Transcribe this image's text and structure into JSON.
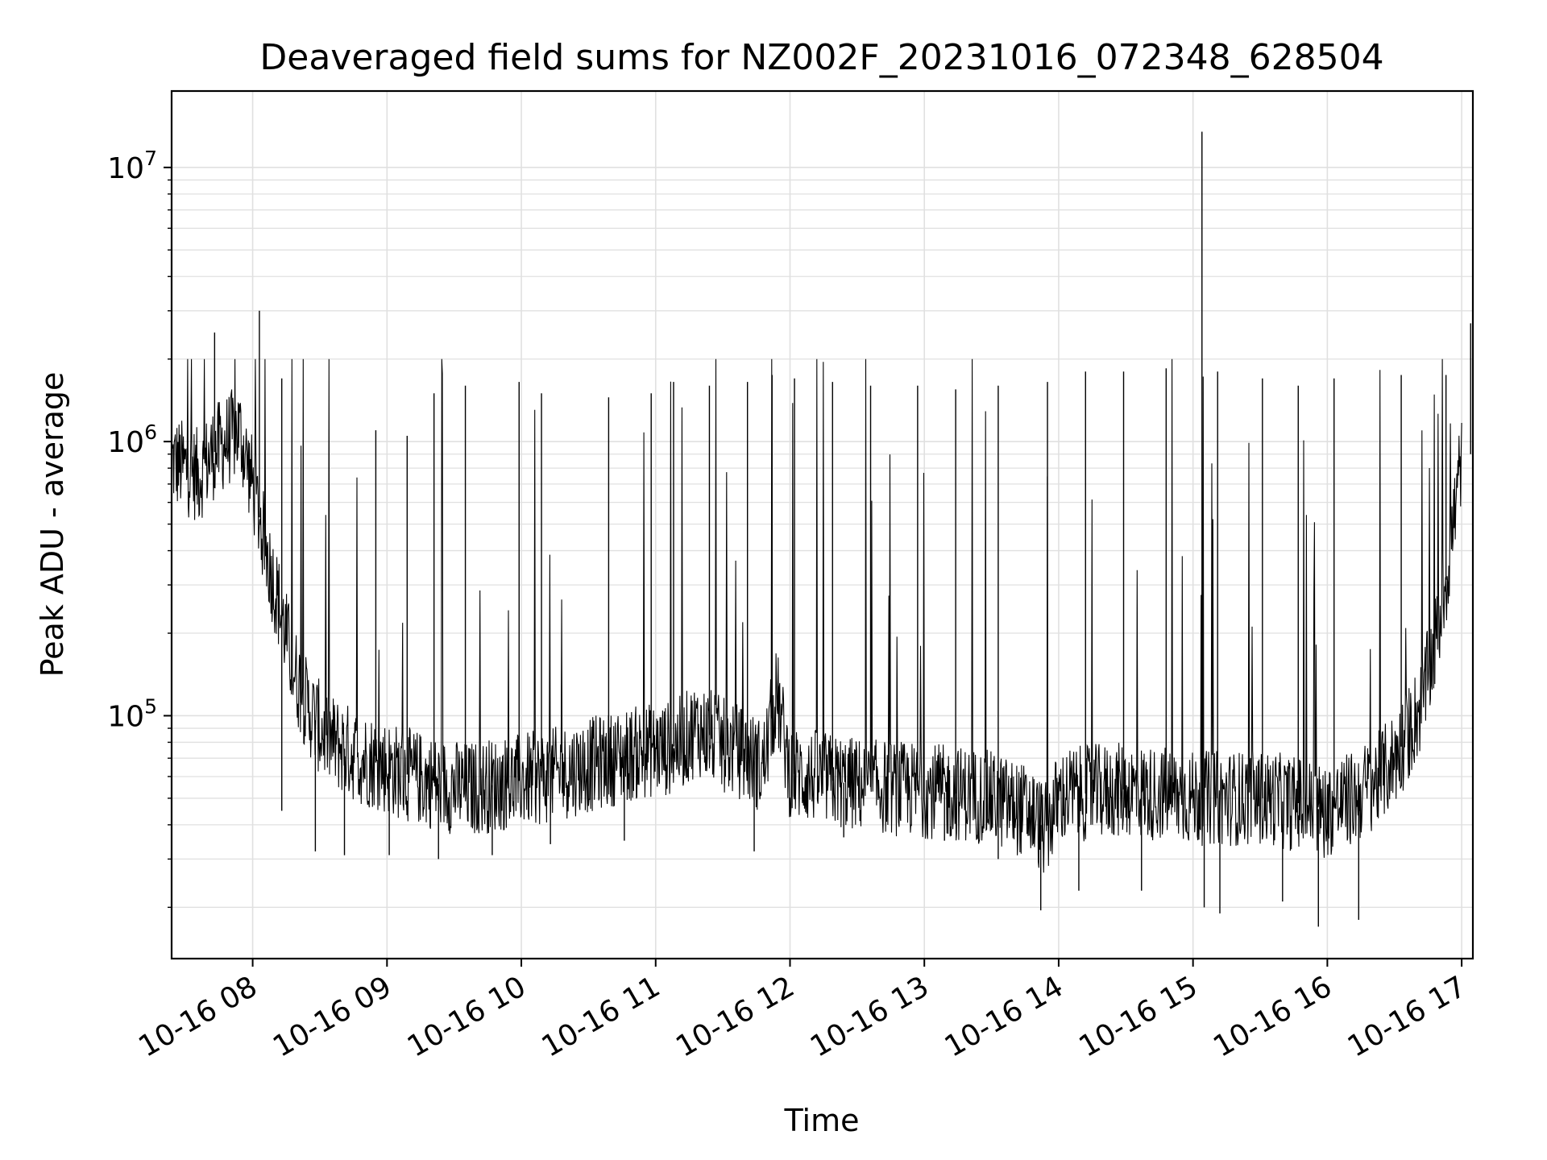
{
  "chart_data": {
    "type": "line",
    "title": "Deaveraged field sums for NZ002F_20231016_072348_628504",
    "xlabel": "Time",
    "ylabel": "Peak ADU - average",
    "yscale": "log",
    "ylim": [
      13000,
      19000000
    ],
    "xlim": [
      "2023-10-16 07:23:48",
      "2023-10-16 17:05:00"
    ],
    "x_ticks": [
      "2023-10-16 08:00",
      "2023-10-16 09:00",
      "2023-10-16 10:00",
      "2023-10-16 11:00",
      "2023-10-16 12:00",
      "2023-10-16 13:00",
      "2023-10-16 14:00",
      "2023-10-16 15:00",
      "2023-10-16 16:00",
      "2023-10-16 17:00"
    ],
    "x_tick_labels": [
      "10-16 08",
      "10-16 09",
      "10-16 10",
      "10-16 11",
      "10-16 12",
      "10-16 13",
      "10-16 14",
      "10-16 15",
      "10-16 16",
      "10-16 17"
    ],
    "y_ticks": [
      100000,
      1000000,
      10000000
    ],
    "y_tick_labels": [
      {
        "base": "10",
        "exp": "5"
      },
      {
        "base": "10",
        "exp": "6"
      },
      {
        "base": "10",
        "exp": "7"
      }
    ],
    "grid": true,
    "line_color": "#000000",
    "series": [
      {
        "x": [
          "2023-10-16 07:24",
          "2023-10-16 07:30",
          "2023-10-16 07:36",
          "2023-10-16 07:42",
          "2023-10-16 07:48",
          "2023-10-16 07:54",
          "2023-10-16 08:00",
          "2023-10-16 08:06",
          "2023-10-16 08:12",
          "2023-10-16 08:18",
          "2023-10-16 08:24",
          "2023-10-16 08:30",
          "2023-10-16 08:36",
          "2023-10-16 08:42",
          "2023-10-16 08:48",
          "2023-10-16 08:54",
          "2023-10-16 09:00",
          "2023-10-16 09:06",
          "2023-10-16 09:12",
          "2023-10-16 09:18",
          "2023-10-16 09:24",
          "2023-10-16 09:30",
          "2023-10-16 09:36",
          "2023-10-16 09:42",
          "2023-10-16 09:48",
          "2023-10-16 09:54",
          "2023-10-16 10:00",
          "2023-10-16 10:06",
          "2023-10-16 10:12",
          "2023-10-16 10:18",
          "2023-10-16 10:24",
          "2023-10-16 10:30",
          "2023-10-16 10:36",
          "2023-10-16 10:42",
          "2023-10-16 10:48",
          "2023-10-16 10:54",
          "2023-10-16 11:00",
          "2023-10-16 11:06",
          "2023-10-16 11:12",
          "2023-10-16 11:18",
          "2023-10-16 11:24",
          "2023-10-16 11:30",
          "2023-10-16 11:36",
          "2023-10-16 11:42",
          "2023-10-16 11:48",
          "2023-10-16 11:54",
          "2023-10-16 12:00",
          "2023-10-16 12:06",
          "2023-10-16 12:12",
          "2023-10-16 12:18",
          "2023-10-16 12:24",
          "2023-10-16 12:30",
          "2023-10-16 12:36",
          "2023-10-16 12:42",
          "2023-10-16 12:48",
          "2023-10-16 12:54",
          "2023-10-16 13:00",
          "2023-10-16 13:06",
          "2023-10-16 13:12",
          "2023-10-16 13:18",
          "2023-10-16 13:24",
          "2023-10-16 13:30",
          "2023-10-16 13:36",
          "2023-10-16 13:42",
          "2023-10-16 13:48",
          "2023-10-16 13:54",
          "2023-10-16 14:00",
          "2023-10-16 14:06",
          "2023-10-16 14:12",
          "2023-10-16 14:18",
          "2023-10-16 14:24",
          "2023-10-16 14:30",
          "2023-10-16 14:36",
          "2023-10-16 14:42",
          "2023-10-16 14:48",
          "2023-10-16 14:54",
          "2023-10-16 15:00",
          "2023-10-16 15:06",
          "2023-10-16 15:12",
          "2023-10-16 15:18",
          "2023-10-16 15:24",
          "2023-10-16 15:30",
          "2023-10-16 15:36",
          "2023-10-16 15:42",
          "2023-10-16 15:48",
          "2023-10-16 15:54",
          "2023-10-16 16:00",
          "2023-10-16 16:06",
          "2023-10-16 16:12",
          "2023-10-16 16:18",
          "2023-10-16 16:24",
          "2023-10-16 16:30",
          "2023-10-16 16:36",
          "2023-10-16 16:42",
          "2023-10-16 16:48",
          "2023-10-16 16:54",
          "2023-10-16 17:00"
        ],
        "y": [
          850000,
          800000,
          750000,
          900000,
          1000000,
          1100000,
          700000,
          400000,
          250000,
          150000,
          110000,
          90000,
          80000,
          75000,
          70000,
          68000,
          65000,
          62000,
          60000,
          58000,
          56000,
          55000,
          54000,
          55000,
          56000,
          57000,
          58000,
          59000,
          60000,
          62000,
          64000,
          66000,
          68000,
          70000,
          72000,
          74000,
          75000,
          76000,
          80000,
          90000,
          85000,
          78000,
          75000,
          70000,
          65000,
          120000,
          62000,
          60000,
          60000,
          58000,
          57000,
          56000,
          55000,
          55000,
          54000,
          54000,
          53000,
          53000,
          52000,
          52000,
          51000,
          50000,
          48000,
          46000,
          44000,
          38000,
          50000,
          52000,
          52000,
          53000,
          53000,
          54000,
          53000,
          52000,
          52000,
          51000,
          50000,
          50000,
          50000,
          50000,
          50000,
          50000,
          50000,
          48000,
          48000,
          46000,
          45000,
          48000,
          50000,
          55000,
          60000,
          70000,
          85000,
          110000,
          180000,
          350000,
          900000
        ],
        "spikes": [
          {
            "x": "2023-10-16 07:43",
            "y": 2500000
          },
          {
            "x": "2023-10-16 08:03",
            "y": 3000000
          },
          {
            "x": "2023-10-16 08:13",
            "y": 1700000
          },
          {
            "x": "2023-10-16 08:55",
            "y": 1100000
          },
          {
            "x": "2023-10-16 09:09",
            "y": 1050000
          },
          {
            "x": "2023-10-16 09:21",
            "y": 1500000
          },
          {
            "x": "2023-10-16 09:35",
            "y": 1600000
          },
          {
            "x": "2023-10-16 09:59",
            "y": 1650000
          },
          {
            "x": "2023-10-16 10:09",
            "y": 1500000
          },
          {
            "x": "2023-10-16 10:39",
            "y": 1450000
          },
          {
            "x": "2023-10-16 10:58",
            "y": 1500000
          },
          {
            "x": "2023-10-16 11:08",
            "y": 1650000
          },
          {
            "x": "2023-10-16 11:24",
            "y": 1600000
          },
          {
            "x": "2023-10-16 11:41",
            "y": 1650000
          },
          {
            "x": "2023-10-16 11:52",
            "y": 1750000
          },
          {
            "x": "2023-10-16 12:02",
            "y": 1700000
          },
          {
            "x": "2023-10-16 12:19",
            "y": 1650000
          },
          {
            "x": "2023-10-16 12:36",
            "y": 1600000
          },
          {
            "x": "2023-10-16 12:57",
            "y": 1600000
          },
          {
            "x": "2023-10-16 13:14",
            "y": 1550000
          },
          {
            "x": "2023-10-16 13:33",
            "y": 1600000
          },
          {
            "x": "2023-10-16 13:55",
            "y": 1650000
          },
          {
            "x": "2023-10-16 14:12",
            "y": 1800000
          },
          {
            "x": "2023-10-16 14:29",
            "y": 1800000
          },
          {
            "x": "2023-10-16 14:48",
            "y": 1850000
          },
          {
            "x": "2023-10-16 15:04",
            "y": 13500000
          },
          {
            "x": "2023-10-16 15:11",
            "y": 1800000
          },
          {
            "x": "2023-10-16 15:31",
            "y": 1700000
          },
          {
            "x": "2023-10-16 15:47",
            "y": 1600000
          },
          {
            "x": "2023-10-16 16:03",
            "y": 1700000
          },
          {
            "x": "2023-10-16 16:33",
            "y": 1750000
          },
          {
            "x": "2023-10-16 16:53",
            "y": 1750000
          },
          {
            "x": "2023-10-16 17:04",
            "y": 2700000
          }
        ],
        "dips": [
          {
            "x": "2023-10-16 08:13",
            "y": 45000
          },
          {
            "x": "2023-10-16 08:28",
            "y": 32000
          },
          {
            "x": "2023-10-16 08:41",
            "y": 31000
          },
          {
            "x": "2023-10-16 09:01",
            "y": 31000
          },
          {
            "x": "2023-10-16 09:23",
            "y": 30000
          },
          {
            "x": "2023-10-16 09:47",
            "y": 31000
          },
          {
            "x": "2023-10-16 10:13",
            "y": 34000
          },
          {
            "x": "2023-10-16 10:46",
            "y": 35000
          },
          {
            "x": "2023-10-16 11:44",
            "y": 32000
          },
          {
            "x": "2023-10-16 12:24",
            "y": 36000
          },
          {
            "x": "2023-10-16 13:09",
            "y": 35000
          },
          {
            "x": "2023-10-16 13:33",
            "y": 30000
          },
          {
            "x": "2023-10-16 13:52",
            "y": 19500
          },
          {
            "x": "2023-10-16 14:09",
            "y": 23000
          },
          {
            "x": "2023-10-16 14:37",
            "y": 23000
          },
          {
            "x": "2023-10-16 15:05",
            "y": 20000
          },
          {
            "x": "2023-10-16 15:12",
            "y": 19000
          },
          {
            "x": "2023-10-16 15:40",
            "y": 21000
          },
          {
            "x": "2023-10-16 15:56",
            "y": 17000
          },
          {
            "x": "2023-10-16 16:14",
            "y": 18000
          }
        ]
      }
    ]
  }
}
